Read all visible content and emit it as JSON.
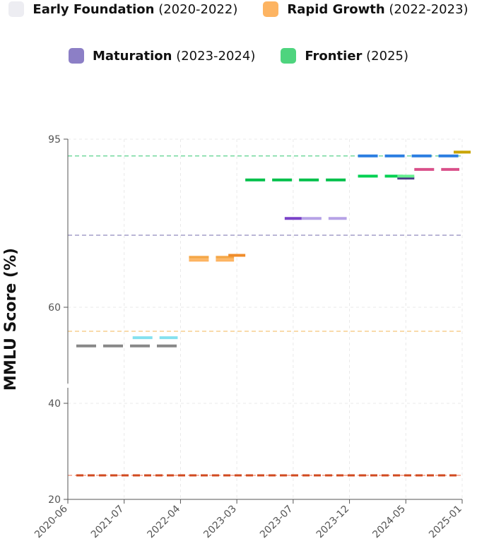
{
  "legend": [
    {
      "label": "Early Foundation",
      "range": "(2020-2022)",
      "color": "#ededf2"
    },
    {
      "label": "Rapid Growth",
      "range": "(2022-2023)",
      "color": "#fdb462"
    },
    {
      "label": "Maturation",
      "range": "(2023-2024)",
      "color": "#8c7fc6"
    },
    {
      "label": "Frontier",
      "range": "(2025)",
      "color": "#4ed47e"
    }
  ],
  "chart_data": {
    "type": "line",
    "ylabel": "MMLU Score (%)",
    "xlabel": "",
    "ylim": [
      20,
      95
    ],
    "y_ticks": [
      20,
      40,
      60,
      95
    ],
    "y_axis_break_between": [
      40,
      60
    ],
    "x_ticks": [
      "2020-06",
      "2021-07",
      "2022-04",
      "2023-03",
      "2023-07",
      "2023-12",
      "2024-05",
      "2025-01"
    ],
    "grid": true,
    "legend_position": "top",
    "reference_lines": [
      {
        "y": 91.5,
        "color": "#74d99f"
      },
      {
        "y": 75,
        "color": "#a39dc8"
      },
      {
        "y": 50,
        "color": "#f7cf8f"
      },
      {
        "y": 25,
        "color": "#f2a08a"
      }
    ],
    "series": [
      {
        "color": "#d14a1f",
        "points": [
          {
            "x": "2020-06",
            "y": 25
          },
          {
            "x": "2021-07",
            "y": 25
          },
          {
            "x": "2022-04",
            "y": 25
          },
          {
            "x": "2023-03",
            "y": 25
          },
          {
            "x": "2023-07",
            "y": 25
          },
          {
            "x": "2023-12",
            "y": 25
          },
          {
            "x": "2024-05",
            "y": 25
          },
          {
            "x": "2025-01",
            "y": 25
          }
        ]
      },
      {
        "color": "#888888",
        "points": [
          {
            "x": "2020-06",
            "y": 43.9
          },
          {
            "x": "2021-07",
            "y": 43.9
          },
          {
            "x": "2022-04",
            "y": 43.9
          }
        ]
      },
      {
        "color": "#84e1ef",
        "points": [
          {
            "x": "2021-07",
            "y": 47.3
          },
          {
            "x": "2022-04",
            "y": 47.3
          }
        ]
      },
      {
        "color": "#fdb462",
        "points": [
          {
            "x": "2022-04",
            "y": 69.8
          },
          {
            "x": "2023-03",
            "y": 69.8
          }
        ]
      },
      {
        "color": "#f5a84a",
        "points": [
          {
            "x": "2022-04",
            "y": 70.4
          },
          {
            "x": "2023-03",
            "y": 70.4
          }
        ]
      },
      {
        "color": "#f08c2a",
        "points": [
          {
            "x": "2023-03",
            "y": 70.8
          }
        ]
      },
      {
        "color": "#00c04a",
        "points": [
          {
            "x": "2023-03",
            "y": 86.5
          },
          {
            "x": "2023-07",
            "y": 86.5
          },
          {
            "x": "2023-12",
            "y": 86.5
          }
        ]
      },
      {
        "color": "#7a42c8",
        "points": [
          {
            "x": "2023-07",
            "y": 78.5
          }
        ]
      },
      {
        "color": "#b6a2e6",
        "points": [
          {
            "x": "2023-07",
            "y": 78.5
          },
          {
            "x": "2023-12",
            "y": 78.5
          }
        ]
      },
      {
        "color": "#00d152",
        "points": [
          {
            "x": "2023-12",
            "y": 87.3
          },
          {
            "x": "2024-05",
            "y": 87.3
          }
        ]
      },
      {
        "color": "#2a7de1",
        "points": [
          {
            "x": "2023-12",
            "y": 91.5
          },
          {
            "x": "2024-05",
            "y": 91.5
          },
          {
            "x": "2025-01",
            "y": 91.5
          }
        ]
      },
      {
        "color": "#4a3a86",
        "points": [
          {
            "x": "2024-05",
            "y": 86.9
          }
        ]
      },
      {
        "color": "#66f090",
        "points": [
          {
            "x": "2024-05",
            "y": 87.3
          }
        ]
      },
      {
        "color": "#d9508a",
        "points": [
          {
            "x": "2024-05",
            "y": 88.7
          },
          {
            "x": "2025-01",
            "y": 88.7
          }
        ]
      },
      {
        "color": "#c9a400",
        "points": [
          {
            "x": "2025-01",
            "y": 92.3
          }
        ]
      }
    ]
  }
}
